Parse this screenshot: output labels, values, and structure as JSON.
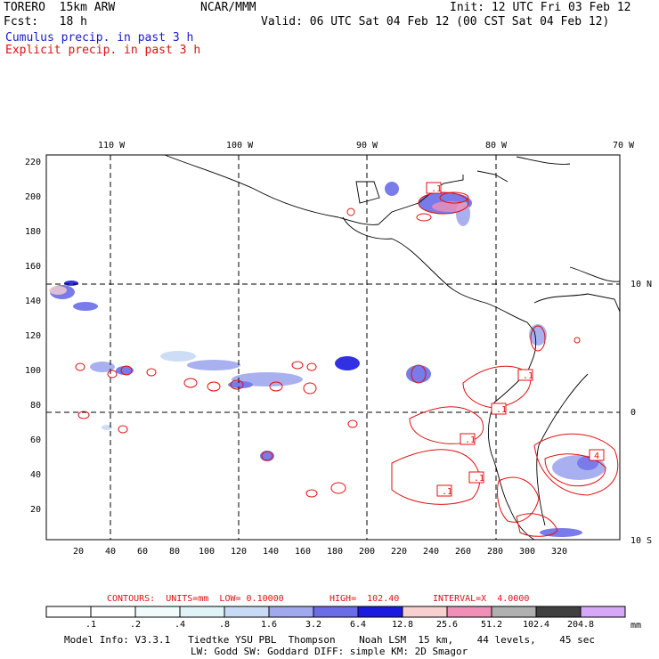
{
  "header": {
    "model": "TORERO  15km ARW",
    "org": "NCAR/MMM",
    "init": "Init: 12 UTC Fri 03 Feb 12",
    "fcst": "Fcst:   18 h",
    "valid": "Valid: 06 UTC Sat 04 Feb 12 (00 CST Sat 04 Feb 12)",
    "cumulus": "Cumulus precip. in past 3 h",
    "explicit": "Explicit precip. in past 3 h"
  },
  "axes": {
    "top_lon": [
      "110 W",
      "100 W",
      "90 W",
      "80 W",
      "70 W"
    ],
    "right_lat": [
      "10 N",
      "0",
      "10 S"
    ],
    "x_ticks": [
      "20",
      "40",
      "60",
      "80",
      "100",
      "120",
      "140",
      "160",
      "180",
      "200",
      "220",
      "240",
      "260",
      "280",
      "300",
      "320"
    ],
    "y_ticks": [
      "220",
      "200",
      "180",
      "160",
      "140",
      "120",
      "100",
      "80",
      "60",
      "40",
      "20"
    ]
  },
  "contour_boxes": [
    ".1",
    ".1",
    ".1",
    ".1",
    ".1",
    ".1",
    "4"
  ],
  "contours_info": {
    "label": "CONTOURS:  UNITS=mm  LOW= 0.10000",
    "high": "HIGH=  102.40",
    "interval": "INTERVAL=X  4.0000"
  },
  "colorbar": {
    "values": [
      ".1",
      ".2",
      ".4",
      ".8",
      "1.6",
      "3.2",
      "6.4",
      "12.8",
      "25.6",
      "51.2",
      "102.4",
      "204.8"
    ],
    "unit": "mm",
    "colors": [
      "#ffffff",
      "#ffffff",
      "#f2fbfb",
      "#e0f4f8",
      "#c8daf5",
      "#a0a8ee",
      "#6b6de8",
      "#1b1be0",
      "#f8d0d0",
      "#f090b8",
      "#b0b0b0",
      "#404040",
      "#d8a8f8"
    ]
  },
  "footer": {
    "line1": "Model Info: V3.3.1   Tiedtke YSU PBL  Thompson    Noah LSM  15 km,    44 levels,    45 sec",
    "line2": "LW: Godd SW: Goddard DIFF: simple KM: 2D Smagor"
  }
}
